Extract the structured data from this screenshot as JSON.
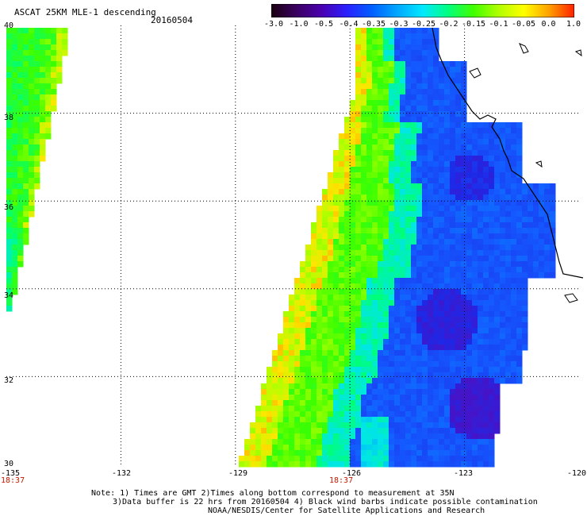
{
  "header": {
    "title": "ASCAT 25KM MLE-1 descending",
    "date": "20160504"
  },
  "colorbar": {
    "labels": [
      "-3.0",
      "-1.0",
      "-0.5",
      "-0.4",
      "-0.35",
      "-0.3",
      "-0.25",
      "-0.2",
      "-0.15",
      "-0.1",
      "-0.05",
      "0.0",
      "1.0"
    ],
    "colors": [
      "#1a0010",
      "#3a0060",
      "#4a00b0",
      "#2a20ff",
      "#0060ff",
      "#00a8ff",
      "#00e8ff",
      "#00ff80",
      "#40ff00",
      "#b0ff00",
      "#ffff00",
      "#ffa000",
      "#ff2000"
    ]
  },
  "map": {
    "lat_labels": [
      "40",
      "38",
      "36",
      "34",
      "32",
      "30"
    ],
    "lon_labels": [
      "-135",
      "-132",
      "-129",
      "-126",
      "-123",
      "-120"
    ],
    "time_labels": [
      "18:37",
      "18:37"
    ]
  },
  "notes": [
    "Note: 1) Times are GMT 2)Times along bottom correspond to measurement at 35N",
    "3)Data buffer is 22 hrs from 20160504 4) Black wind barbs indicate possible contamination",
    "NOAA/NESDIS/Center for Satellite Applications and Research"
  ]
}
